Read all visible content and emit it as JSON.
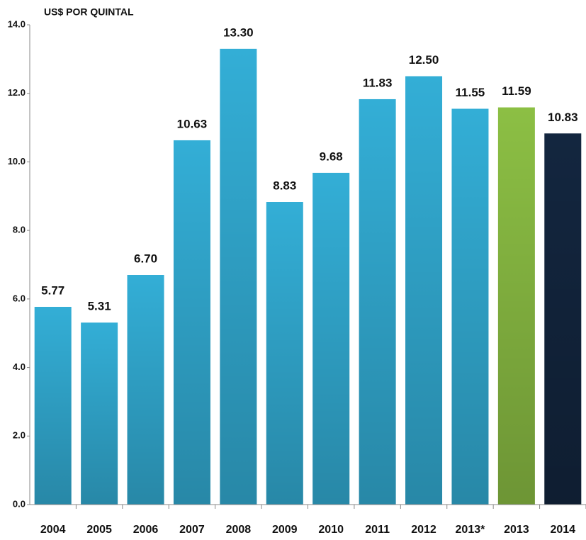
{
  "chart_data": {
    "type": "bar",
    "title": "US$ POR QUINTAL",
    "categories": [
      "2004",
      "2005",
      "2006",
      "2007",
      "2008",
      "2009",
      "2010",
      "2011",
      "2012",
      "2013*",
      "2013",
      "2014"
    ],
    "values": [
      5.77,
      5.31,
      6.7,
      10.63,
      13.3,
      8.83,
      9.68,
      11.83,
      12.5,
      11.55,
      11.59,
      10.83
    ],
    "value_labels": [
      "5.77",
      "5.31",
      "6.70",
      "10.63",
      "13.30",
      "8.83",
      "9.68",
      "11.83",
      "12.50",
      "11.55",
      "11.59",
      "10.83"
    ],
    "colors": [
      "#33aed6",
      "#33aed6",
      "#33aed6",
      "#33aed6",
      "#33aed6",
      "#33aed6",
      "#33aed6",
      "#33aed6",
      "#33aed6",
      "#33aed6",
      "#8cbf44",
      "#13263f"
    ],
    "ylim": [
      0,
      14
    ],
    "yticks": [
      {
        "value": 0,
        "label": "0.0"
      },
      {
        "value": 2,
        "label": "2.0"
      },
      {
        "value": 4,
        "label": "4.0"
      },
      {
        "value": 6,
        "label": "6.0"
      },
      {
        "value": 8,
        "label": "8.0"
      },
      {
        "value": 10,
        "label": "10.0"
      },
      {
        "value": 12,
        "label": "12.0"
      },
      {
        "value": 14,
        "label": "14.0"
      }
    ],
    "grid": false
  }
}
